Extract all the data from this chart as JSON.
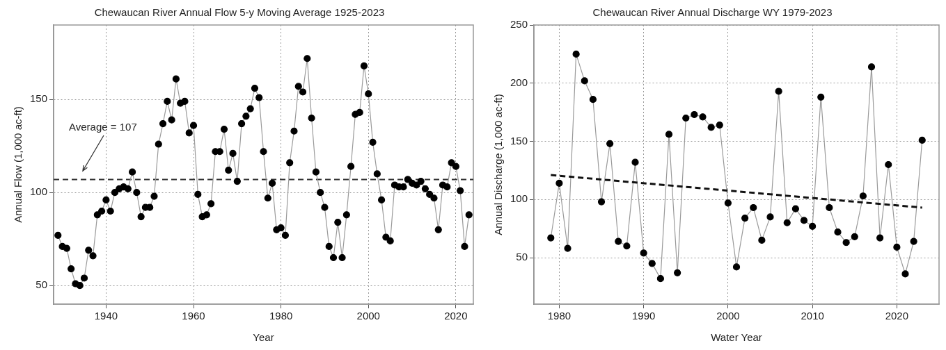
{
  "chart_data": [
    {
      "type": "line",
      "title": "Chewaucan River Annual Flow 5-y Moving Average 1925-2023",
      "xlabel": "Year",
      "ylabel": "Annual Flow (1,000 ac-ft)",
      "xlim": [
        1928,
        2024
      ],
      "xticks": [
        1940,
        1960,
        1980,
        2000,
        2020
      ],
      "ylim": [
        40,
        190
      ],
      "yticks": [
        50,
        100,
        150
      ],
      "grid": true,
      "legend": false,
      "marker": "circle",
      "x": [
        1929,
        1930,
        1931,
        1932,
        1933,
        1934,
        1935,
        1936,
        1937,
        1938,
        1939,
        1940,
        1941,
        1942,
        1943,
        1944,
        1945,
        1946,
        1947,
        1948,
        1949,
        1950,
        1951,
        1952,
        1953,
        1954,
        1955,
        1956,
        1957,
        1958,
        1959,
        1960,
        1961,
        1962,
        1963,
        1964,
        1965,
        1966,
        1967,
        1968,
        1969,
        1970,
        1971,
        1972,
        1973,
        1974,
        1975,
        1976,
        1977,
        1978,
        1979,
        1980,
        1981,
        1982,
        1983,
        1984,
        1985,
        1986,
        1987,
        1988,
        1989,
        1990,
        1991,
        1992,
        1993,
        1994,
        1995,
        1996,
        1997,
        1998,
        1999,
        2000,
        2001,
        2002,
        2003,
        2004,
        2005,
        2006,
        2007,
        2008,
        2009,
        2010,
        2011,
        2012,
        2013,
        2014,
        2015,
        2016,
        2017,
        2018,
        2019,
        2020,
        2021,
        2022,
        2023
      ],
      "series": [
        {
          "color": "#000000",
          "values": [
            77,
            71,
            70,
            59,
            51,
            50,
            54,
            69,
            66,
            88,
            90,
            96,
            90,
            100,
            102,
            103,
            102,
            111,
            100,
            87,
            92,
            92,
            98,
            126,
            137,
            149,
            139,
            161,
            148,
            149,
            132,
            136,
            99,
            87,
            88,
            94,
            122,
            122,
            134,
            112,
            121,
            106,
            137,
            141,
            145,
            156,
            151,
            122,
            97,
            105,
            80,
            81,
            77,
            116,
            133,
            157,
            154,
            172,
            140,
            111,
            100,
            92,
            71,
            65,
            84,
            65,
            88,
            114,
            142,
            143,
            168,
            153,
            127,
            110,
            96,
            76,
            74,
            104,
            103,
            103,
            107,
            105,
            104,
            106,
            102,
            99,
            97,
            80,
            104,
            103,
            116,
            114,
            101,
            71,
            88
          ]
        }
      ],
      "ref_lines": [
        {
          "axis": "y",
          "value": 107,
          "label": "Average = 107",
          "line_style": "dashed",
          "color": "#333333"
        }
      ]
    },
    {
      "type": "line",
      "title": "Chewaucan River Annual Discharge WY 1979-2023",
      "xlabel": "Water Year",
      "ylabel": "Annual Discharge (1,000 ac-ft)",
      "xlim": [
        1977,
        2025
      ],
      "xticks": [
        1980,
        1990,
        2000,
        2010,
        2020
      ],
      "ylim": [
        10,
        250
      ],
      "yticks": [
        50,
        100,
        150,
        200,
        250
      ],
      "grid": true,
      "legend": false,
      "marker": "circle",
      "x": [
        1979,
        1980,
        1981,
        1982,
        1983,
        1984,
        1985,
        1986,
        1987,
        1988,
        1989,
        1990,
        1991,
        1992,
        1993,
        1994,
        1995,
        1996,
        1997,
        1998,
        1999,
        2000,
        2001,
        2002,
        2003,
        2004,
        2005,
        2006,
        2007,
        2008,
        2009,
        2010,
        2011,
        2012,
        2013,
        2014,
        2015,
        2016,
        2017,
        2018,
        2019,
        2020,
        2021,
        2022,
        2023
      ],
      "series": [
        {
          "color": "#000000",
          "values": [
            67,
            114,
            58,
            225,
            202,
            186,
            98,
            148,
            64,
            60,
            132,
            54,
            45,
            32,
            156,
            37,
            170,
            173,
            171,
            162,
            164,
            97,
            42,
            84,
            93,
            65,
            85,
            193,
            80,
            92,
            82,
            77,
            188,
            93,
            72,
            63,
            68,
            103,
            214,
            67,
            130,
            59,
            36,
            64,
            151
          ]
        },
        {
          "type": "line",
          "color": "#111111",
          "x": [
            1979,
            2023
          ],
          "values": [
            121,
            93
          ],
          "marker": "none",
          "line_style": "dashed"
        }
      ]
    }
  ]
}
